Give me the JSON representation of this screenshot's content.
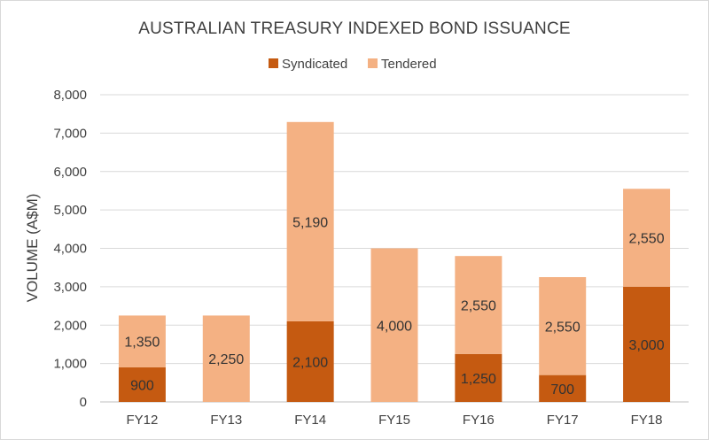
{
  "chart_data": {
    "type": "bar",
    "stacked": true,
    "title": "AUSTRALIAN TREASURY INDEXED BOND ISSUANCE",
    "ylabel": "VOLUME (A$M)",
    "xlabel": "",
    "categories": [
      "FY12",
      "FY13",
      "FY14",
      "FY15",
      "FY16",
      "FY17",
      "FY18"
    ],
    "series": [
      {
        "name": "Syndicated",
        "color": "#c55a11",
        "values": [
          900,
          0,
          2100,
          0,
          1250,
          700,
          3000
        ]
      },
      {
        "name": "Tendered",
        "color": "#f4b183",
        "values": [
          1350,
          2250,
          5190,
          4000,
          2550,
          2550,
          2550
        ]
      }
    ],
    "ylim": [
      0,
      8000
    ],
    "yticks": [
      0,
      1000,
      2000,
      3000,
      4000,
      5000,
      6000,
      7000,
      8000
    ],
    "ytick_labels": [
      "0",
      "1,000",
      "2,000",
      "3,000",
      "4,000",
      "5,000",
      "6,000",
      "7,000",
      "8,000"
    ],
    "data_labels": [
      [
        "900",
        "",
        "2,100",
        "",
        "1,250",
        "700",
        "3,000"
      ],
      [
        "1,350",
        "2,250",
        "5,190",
        "4,000",
        "2,550",
        "2,550",
        "2,550"
      ]
    ],
    "grid": true,
    "legend_position": "top-center"
  }
}
